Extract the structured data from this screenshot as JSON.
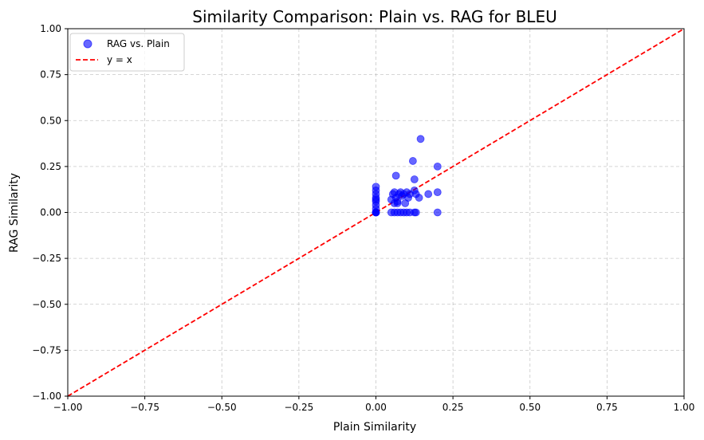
{
  "chart_data": {
    "type": "scatter",
    "title": "Similarity Comparison: Plain vs. RAG for BLEU",
    "xlabel": "Plain Similarity",
    "ylabel": "RAG Similarity",
    "xlim": [
      -1.0,
      1.0
    ],
    "ylim": [
      -1.0,
      1.0
    ],
    "xticks": [
      "−1.00",
      "−0.75",
      "−0.50",
      "−0.25",
      "0.00",
      "0.25",
      "0.50",
      "0.75",
      "1.00"
    ],
    "yticks": [
      "−1.00",
      "−0.75",
      "−0.50",
      "−0.25",
      "0.00",
      "0.25",
      "0.50",
      "0.75",
      "1.00"
    ],
    "tick_values": [
      -1.0,
      -0.75,
      -0.5,
      -0.25,
      0.0,
      0.25,
      0.5,
      0.75,
      1.0
    ],
    "grid": true,
    "legend_position": "top-left",
    "series": [
      {
        "name": "RAG vs. Plain",
        "kind": "scatter",
        "color": "#0000ff",
        "points": [
          [
            0.0,
            0.0
          ],
          [
            0.0,
            0.0
          ],
          [
            0.0,
            0.0
          ],
          [
            0.0,
            0.0
          ],
          [
            0.0,
            0.02
          ],
          [
            0.0,
            0.04
          ],
          [
            0.0,
            0.06
          ],
          [
            0.0,
            0.08
          ],
          [
            0.0,
            0.1
          ],
          [
            0.0,
            0.12
          ],
          [
            0.0,
            0.14
          ],
          [
            0.0,
            0.07
          ],
          [
            0.05,
            0.0
          ],
          [
            0.06,
            0.0
          ],
          [
            0.07,
            0.0
          ],
          [
            0.08,
            0.0
          ],
          [
            0.09,
            0.0
          ],
          [
            0.1,
            0.0
          ],
          [
            0.11,
            0.0
          ],
          [
            0.125,
            0.0
          ],
          [
            0.13,
            0.0
          ],
          [
            0.2,
            0.0
          ],
          [
            0.05,
            0.07
          ],
          [
            0.055,
            0.1
          ],
          [
            0.06,
            0.11
          ],
          [
            0.065,
            0.08
          ],
          [
            0.07,
            0.06
          ],
          [
            0.075,
            0.1
          ],
          [
            0.08,
            0.11
          ],
          [
            0.085,
            0.09
          ],
          [
            0.09,
            0.1
          ],
          [
            0.095,
            0.05
          ],
          [
            0.1,
            0.11
          ],
          [
            0.105,
            0.08
          ],
          [
            0.06,
            0.05
          ],
          [
            0.07,
            0.05
          ],
          [
            0.065,
            0.2
          ],
          [
            0.12,
            0.28
          ],
          [
            0.125,
            0.18
          ],
          [
            0.125,
            0.12
          ],
          [
            0.13,
            0.1
          ],
          [
            0.14,
            0.08
          ],
          [
            0.145,
            0.4
          ],
          [
            0.17,
            0.1
          ],
          [
            0.2,
            0.25
          ],
          [
            0.2,
            0.11
          ],
          [
            0.11,
            0.1
          ]
        ]
      },
      {
        "name": "y = x",
        "kind": "line",
        "color": "#ff0000",
        "style": "dashed",
        "points": [
          [
            -1.0,
            -1.0
          ],
          [
            1.0,
            1.0
          ]
        ]
      }
    ]
  }
}
